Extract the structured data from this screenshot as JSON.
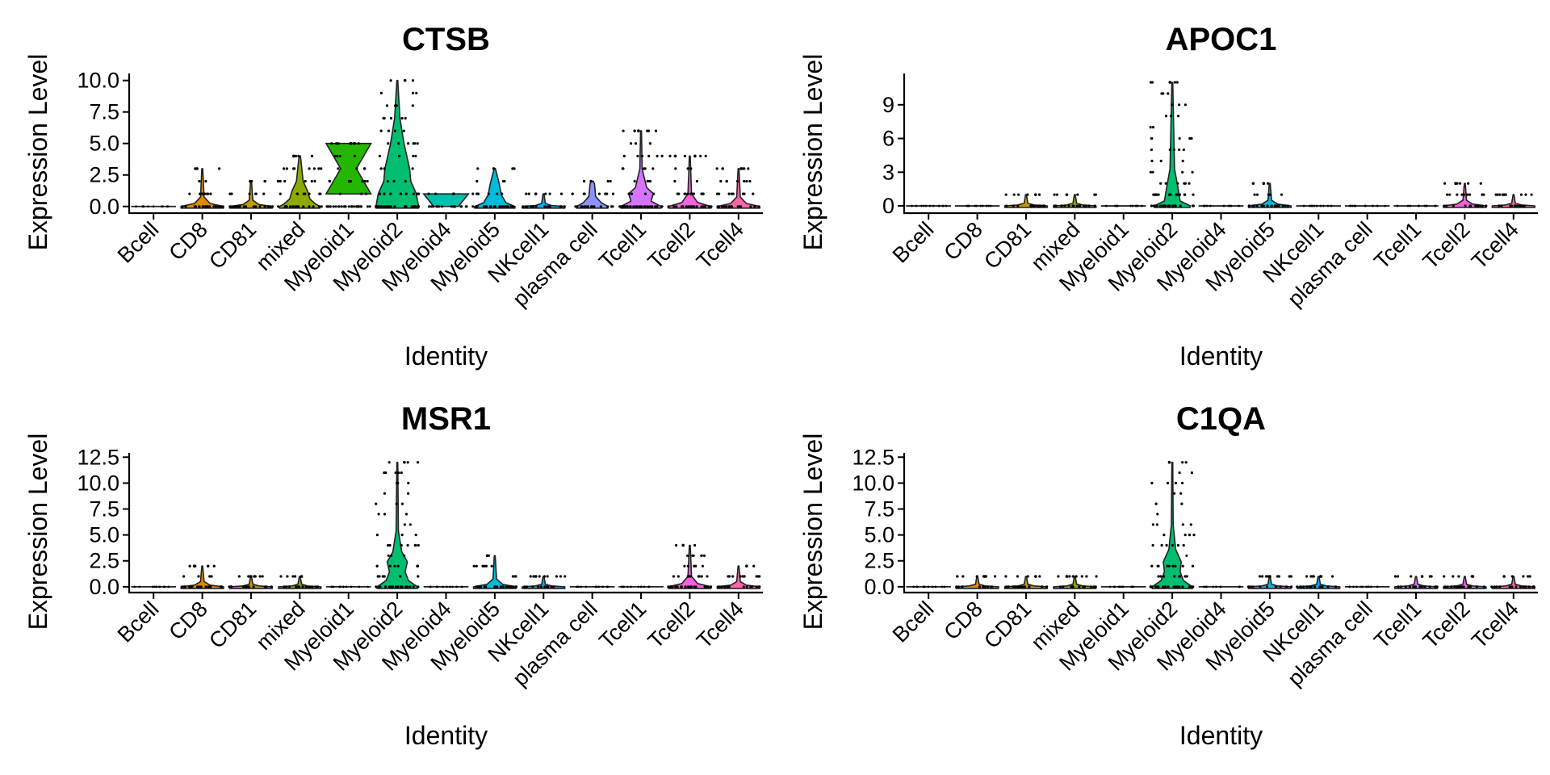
{
  "chart_data": [
    {
      "type": "violin",
      "title": "CTSB",
      "xlabel": "Identity",
      "ylabel": "Expression Level",
      "categories": [
        "Bcell",
        "CD8",
        "CD81",
        "mixed",
        "Myeloid1",
        "Myeloid2",
        "Myeloid4",
        "Myeloid5",
        "NKcell1",
        "plasma cell",
        "Tcell1",
        "Tcell2",
        "Tcell4"
      ],
      "yticks": [
        "0.0",
        "2.5",
        "5.0",
        "7.5",
        "10.0"
      ],
      "ytick_values": [
        0,
        2.5,
        5,
        7.5,
        10
      ],
      "ylim": [
        -0.4,
        10.3
      ],
      "max_values": [
        0,
        3,
        2,
        4,
        5,
        10,
        1,
        3,
        1,
        2,
        6,
        4,
        3
      ],
      "colors": [
        "#F8766D",
        "#E18A00",
        "#BE9C00",
        "#8CAB00",
        "#24B700",
        "#00BE70",
        "#00C1AB",
        "#00BBDA",
        "#00ACFC",
        "#8B93FF",
        "#D575FE",
        "#F962DD",
        "#FF65AC"
      ]
    },
    {
      "type": "violin",
      "title": "APOC1",
      "xlabel": "Identity",
      "ylabel": "Expression Level",
      "categories": [
        "Bcell",
        "CD8",
        "CD81",
        "mixed",
        "Myeloid1",
        "Myeloid2",
        "Myeloid4",
        "Myeloid5",
        "NKcell1",
        "plasma cell",
        "Tcell1",
        "Tcell2",
        "Tcell4"
      ],
      "yticks": [
        "0",
        "3",
        "6",
        "9"
      ],
      "ytick_values": [
        0,
        3,
        6,
        9
      ],
      "ylim": [
        -0.5,
        11.5
      ],
      "max_values": [
        0,
        0,
        1,
        1,
        0,
        11,
        0,
        2,
        0,
        0,
        0,
        2,
        1
      ],
      "colors": [
        "#F8766D",
        "#E18A00",
        "#BE9C00",
        "#8CAB00",
        "#24B700",
        "#00BE70",
        "#00C1AB",
        "#00BBDA",
        "#00ACFC",
        "#8B93FF",
        "#D575FE",
        "#F962DD",
        "#FF65AC"
      ]
    },
    {
      "type": "violin",
      "title": "MSR1",
      "xlabel": "Identity",
      "ylabel": "Expression Level",
      "categories": [
        "Bcell",
        "CD8",
        "CD81",
        "mixed",
        "Myeloid1",
        "Myeloid2",
        "Myeloid4",
        "Myeloid5",
        "NKcell1",
        "plasma cell",
        "Tcell1",
        "Tcell2",
        "Tcell4"
      ],
      "yticks": [
        "0.0",
        "2.5",
        "5.0",
        "7.5",
        "10.0",
        "12.5"
      ],
      "ytick_values": [
        0,
        2.5,
        5,
        7.5,
        10,
        12.5
      ],
      "ylim": [
        -0.4,
        12.6
      ],
      "max_values": [
        0,
        2,
        1,
        1,
        0,
        12,
        0,
        3,
        1,
        0,
        0,
        4,
        2
      ],
      "colors": [
        "#F8766D",
        "#E18A00",
        "#BE9C00",
        "#8CAB00",
        "#24B700",
        "#00BE70",
        "#00C1AB",
        "#00BBDA",
        "#00ACFC",
        "#8B93FF",
        "#D575FE",
        "#F962DD",
        "#FF65AC"
      ]
    },
    {
      "type": "violin",
      "title": "C1QA",
      "xlabel": "Identity",
      "ylabel": "Expression Level",
      "categories": [
        "Bcell",
        "CD8",
        "CD81",
        "mixed",
        "Myeloid1",
        "Myeloid2",
        "Myeloid4",
        "Myeloid5",
        "NKcell1",
        "plasma cell",
        "Tcell1",
        "Tcell2",
        "Tcell4"
      ],
      "yticks": [
        "0.0",
        "2.5",
        "5.0",
        "7.5",
        "10.0",
        "12.5"
      ],
      "ytick_values": [
        0,
        2.5,
        5,
        7.5,
        10,
        12.5
      ],
      "ylim": [
        -0.4,
        12.6
      ],
      "max_values": [
        0,
        1,
        1,
        1,
        0,
        12,
        0,
        1,
        1,
        0,
        1,
        1,
        1
      ],
      "colors": [
        "#F8766D",
        "#E18A00",
        "#BE9C00",
        "#8CAB00",
        "#24B700",
        "#00BE70",
        "#00C1AB",
        "#00BBDA",
        "#00ACFC",
        "#8B93FF",
        "#D575FE",
        "#F962DD",
        "#FF65AC"
      ]
    }
  ]
}
